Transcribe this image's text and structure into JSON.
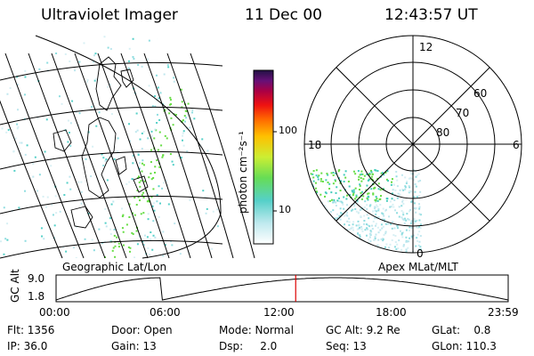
{
  "header": {
    "instrument": "Ultraviolet Imager",
    "date": "11 Dec 00",
    "time": "12:43:57 UT"
  },
  "colorbar": {
    "label": "photon cm⁻²s⁻¹",
    "ticks": [
      "100",
      "10"
    ]
  },
  "left_panel": {
    "caption": "Geographic Lat/Lon"
  },
  "right_panel": {
    "caption": "Apex MLat/MLT",
    "mlt_labels": {
      "top": "12",
      "left": "18",
      "right": "6",
      "bottom": "0"
    },
    "lat_labels": [
      "60",
      "70",
      "80"
    ]
  },
  "altitude_plot": {
    "ylabel": "GC Alt",
    "yticks": [
      "9.0",
      "1.8"
    ],
    "xticks": [
      "00:00",
      "06:00",
      "12:00",
      "18:00",
      "23:59"
    ],
    "current_time_fraction": 0.53
  },
  "footer": {
    "row1": [
      "Flt: 1356",
      "Door: Open",
      "Mode: Normal",
      "GC Alt: 9.2 Re",
      "GLat:    0.8"
    ],
    "row2": [
      "IP: 36.0",
      "Gain: 13",
      "Dsp:     2.0",
      "Seq: 13",
      "GLon: 110.3"
    ]
  },
  "colors": {
    "aurora_green": "#66dd44",
    "aurora_cyan": "#44ccbb",
    "marker_red": "#dd0000"
  }
}
